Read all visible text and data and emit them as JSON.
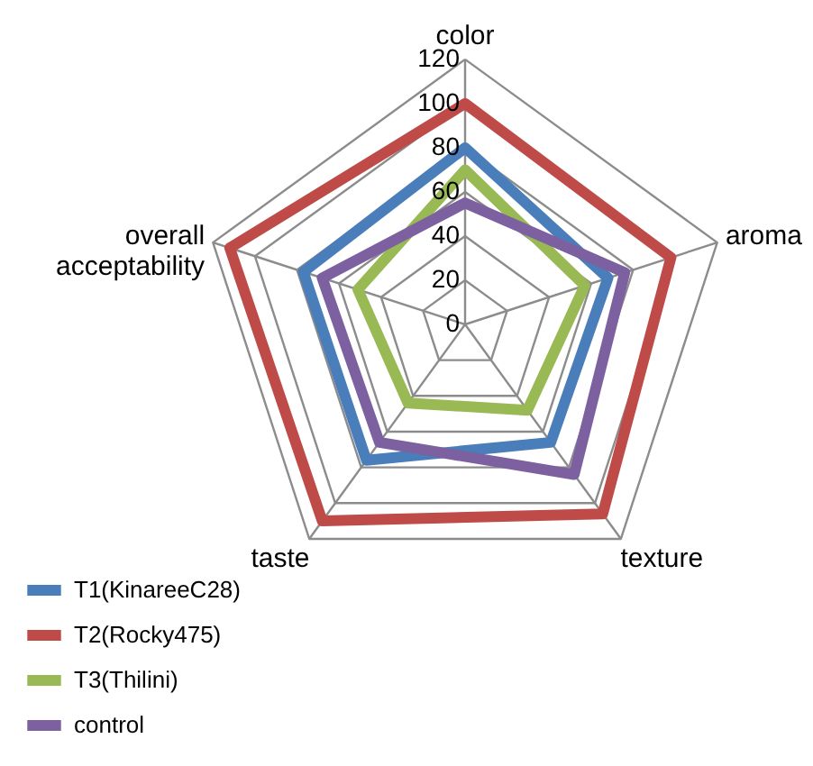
{
  "chart_data": {
    "type": "radar",
    "categories": [
      "color",
      "aroma",
      "texture",
      "taste",
      "overall acceptability"
    ],
    "series": [
      {
        "name": "T1(KinareeC28)",
        "color": "#4a7ebb",
        "values": [
          80,
          68,
          66,
          76,
          77
        ]
      },
      {
        "name": "T2(Rocky475)",
        "color": "#be4b48",
        "values": [
          100,
          98,
          106,
          110,
          112
        ]
      },
      {
        "name": "T3(Thilini)",
        "color": "#98b954",
        "values": [
          70,
          57,
          48,
          44,
          51
        ]
      },
      {
        "name": "control",
        "color": "#7d60a0",
        "values": [
          55,
          76,
          84,
          66,
          68
        ]
      }
    ],
    "ylim": [
      0,
      120
    ],
    "yticks": [
      0,
      20,
      40,
      60,
      80,
      100,
      120
    ],
    "grid": true,
    "legend": "bottom left"
  }
}
